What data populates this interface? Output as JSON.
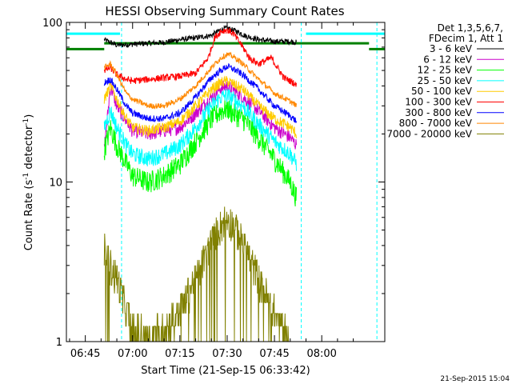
{
  "chart_data": {
    "type": "line",
    "title": "HESSI Observing Summary Count Rates",
    "xlabel": "Start Time (21-Sep-15 06:33:42)",
    "ylabel_main": "Count Rate (s",
    "ylabel_sup1": "-1",
    "ylabel_mid": " detector",
    "ylabel_sup2": "-1",
    "ylabel_end": ")",
    "y_scale": "log",
    "ylim": [
      1,
      100
    ],
    "xlim": [
      39,
      140
    ],
    "x_unit": "minutes after 06:00 UT",
    "x_ticks": [
      {
        "v": 45,
        "label": "06:45"
      },
      {
        "v": 60,
        "label": "07:00"
      },
      {
        "v": 75,
        "label": "07:15"
      },
      {
        "v": 90,
        "label": "07:30"
      },
      {
        "v": 105,
        "label": "07:45"
      },
      {
        "v": 120,
        "label": "08:00"
      }
    ],
    "y_ticks": [
      {
        "v": 1,
        "label": "1"
      },
      {
        "v": 10,
        "label": "10"
      },
      {
        "v": 100,
        "label": "100"
      }
    ],
    "legend_header": [
      "Det 1,3,5,6,7,",
      "FDecim 1, Att 1"
    ],
    "legend_position": "right",
    "footer_date": "21-Sep-2015 15:04",
    "series": [
      {
        "name": "3 - 6 keV",
        "color": "#000000",
        "points": [
          [
            51,
            78
          ],
          [
            55,
            72
          ],
          [
            60,
            73
          ],
          [
            65,
            74
          ],
          [
            70,
            75
          ],
          [
            75,
            78
          ],
          [
            80,
            80
          ],
          [
            85,
            83
          ],
          [
            88,
            90
          ],
          [
            90,
            92
          ],
          [
            93,
            88
          ],
          [
            96,
            82
          ],
          [
            100,
            78
          ],
          [
            105,
            76
          ],
          [
            110,
            76
          ],
          [
            112,
            75
          ]
        ]
      },
      {
        "name": "6 - 12 keV",
        "color": "#cc00cc",
        "points": [
          [
            51,
            16
          ],
          [
            53,
            40
          ],
          [
            55,
            30
          ],
          [
            58,
            24
          ],
          [
            60,
            21
          ],
          [
            65,
            20
          ],
          [
            70,
            21
          ],
          [
            75,
            22
          ],
          [
            80,
            27
          ],
          [
            85,
            34
          ],
          [
            88,
            39
          ],
          [
            90,
            40
          ],
          [
            92,
            38
          ],
          [
            95,
            34
          ],
          [
            100,
            28
          ],
          [
            105,
            22
          ],
          [
            110,
            19
          ],
          [
            112,
            17
          ]
        ]
      },
      {
        "name": "12 - 25 keV",
        "color": "#00ff00",
        "points": [
          [
            51,
            16
          ],
          [
            53,
            22
          ],
          [
            55,
            17
          ],
          [
            58,
            13
          ],
          [
            60,
            11
          ],
          [
            65,
            10
          ],
          [
            70,
            11
          ],
          [
            75,
            13
          ],
          [
            80,
            18
          ],
          [
            85,
            25
          ],
          [
            88,
            28
          ],
          [
            90,
            29
          ],
          [
            92,
            27
          ],
          [
            95,
            25
          ],
          [
            100,
            19
          ],
          [
            105,
            14
          ],
          [
            110,
            10
          ],
          [
            112,
            8
          ]
        ]
      },
      {
        "name": "25 - 50 keV",
        "color": "#00ffff",
        "points": [
          [
            51,
            22
          ],
          [
            53,
            28
          ],
          [
            55,
            22
          ],
          [
            58,
            17
          ],
          [
            60,
            15
          ],
          [
            65,
            14
          ],
          [
            70,
            15
          ],
          [
            75,
            17
          ],
          [
            80,
            22
          ],
          [
            85,
            30
          ],
          [
            88,
            34
          ],
          [
            90,
            35
          ],
          [
            92,
            33
          ],
          [
            95,
            30
          ],
          [
            100,
            23
          ],
          [
            105,
            18
          ],
          [
            110,
            15
          ],
          [
            112,
            13
          ]
        ]
      },
      {
        "name": "50 - 100 keV",
        "color": "#ffcc00",
        "points": [
          [
            51,
            33
          ],
          [
            53,
            40
          ],
          [
            55,
            33
          ],
          [
            58,
            25
          ],
          [
            60,
            22
          ],
          [
            65,
            21
          ],
          [
            70,
            22
          ],
          [
            75,
            24
          ],
          [
            80,
            30
          ],
          [
            85,
            38
          ],
          [
            88,
            42
          ],
          [
            90,
            43
          ],
          [
            92,
            41
          ],
          [
            95,
            38
          ],
          [
            100,
            30
          ],
          [
            105,
            25
          ],
          [
            110,
            22
          ],
          [
            112,
            20
          ]
        ]
      },
      {
        "name": "100 - 300 keV",
        "color": "#ff0000",
        "points": [
          [
            51,
            50
          ],
          [
            53,
            52
          ],
          [
            55,
            47
          ],
          [
            58,
            44
          ],
          [
            60,
            43
          ],
          [
            65,
            44
          ],
          [
            70,
            45
          ],
          [
            75,
            46
          ],
          [
            80,
            48
          ],
          [
            84,
            60
          ],
          [
            86,
            80
          ],
          [
            88,
            88
          ],
          [
            90,
            90
          ],
          [
            92,
            85
          ],
          [
            95,
            70
          ],
          [
            97,
            60
          ],
          [
            100,
            55
          ],
          [
            104,
            60
          ],
          [
            108,
            45
          ],
          [
            111,
            42
          ],
          [
            112,
            40
          ]
        ]
      },
      {
        "name": "300 - 800 keV",
        "color": "#0000ff",
        "points": [
          [
            51,
            42
          ],
          [
            53,
            44
          ],
          [
            55,
            38
          ],
          [
            58,
            30
          ],
          [
            60,
            27
          ],
          [
            65,
            25
          ],
          [
            70,
            25
          ],
          [
            75,
            27
          ],
          [
            80,
            34
          ],
          [
            85,
            45
          ],
          [
            88,
            50
          ],
          [
            90,
            53
          ],
          [
            92,
            51
          ],
          [
            95,
            47
          ],
          [
            100,
            38
          ],
          [
            105,
            30
          ],
          [
            110,
            26
          ],
          [
            112,
            24
          ]
        ]
      },
      {
        "name": "800 - 7000 keV",
        "color": "#ff8800",
        "points": [
          [
            51,
            52
          ],
          [
            53,
            55
          ],
          [
            55,
            47
          ],
          [
            58,
            36
          ],
          [
            60,
            33
          ],
          [
            65,
            30
          ],
          [
            70,
            30
          ],
          [
            75,
            33
          ],
          [
            80,
            40
          ],
          [
            85,
            52
          ],
          [
            88,
            60
          ],
          [
            90,
            63
          ],
          [
            92,
            61
          ],
          [
            95,
            55
          ],
          [
            100,
            44
          ],
          [
            105,
            36
          ],
          [
            110,
            32
          ],
          [
            112,
            30
          ]
        ]
      },
      {
        "name": "7000 - 20000 keV",
        "color": "#808000",
        "points": [
          [
            51,
            3.8
          ],
          [
            53,
            3.0
          ],
          [
            55,
            2.5
          ],
          [
            57,
            1.8
          ],
          [
            60,
            1.2
          ],
          [
            65,
            1.1
          ],
          [
            70,
            1.2
          ],
          [
            75,
            1.6
          ],
          [
            80,
            2.5
          ],
          [
            85,
            4.2
          ],
          [
            88,
            5.4
          ],
          [
            90,
            6.0
          ],
          [
            92,
            5.4
          ],
          [
            95,
            4.2
          ],
          [
            100,
            2.5
          ],
          [
            105,
            1.5
          ],
          [
            108,
            1.2
          ],
          [
            110,
            1.0
          ]
        ]
      }
    ],
    "reference_lines": [
      {
        "color": "#00ffff",
        "type": "level",
        "x1": 39,
        "x2": 56,
        "y": 85
      },
      {
        "color": "#00ffff",
        "type": "level",
        "x1": 115,
        "x2": 140,
        "y": 85
      },
      {
        "color": "#008000",
        "type": "level",
        "x1": 39,
        "x2": 51,
        "y": 68
      },
      {
        "color": "#008000",
        "type": "level",
        "x1": 51,
        "x2": 135,
        "y": 74
      },
      {
        "color": "#008000",
        "type": "level",
        "x1": 135,
        "x2": 140,
        "y": 68
      },
      {
        "color": "#00ffff",
        "type": "vline",
        "x": 56.5
      },
      {
        "color": "#00ffff",
        "type": "vline",
        "x": 113.5
      },
      {
        "color": "#00ffff",
        "type": "vline",
        "x": 137.5
      }
    ]
  }
}
